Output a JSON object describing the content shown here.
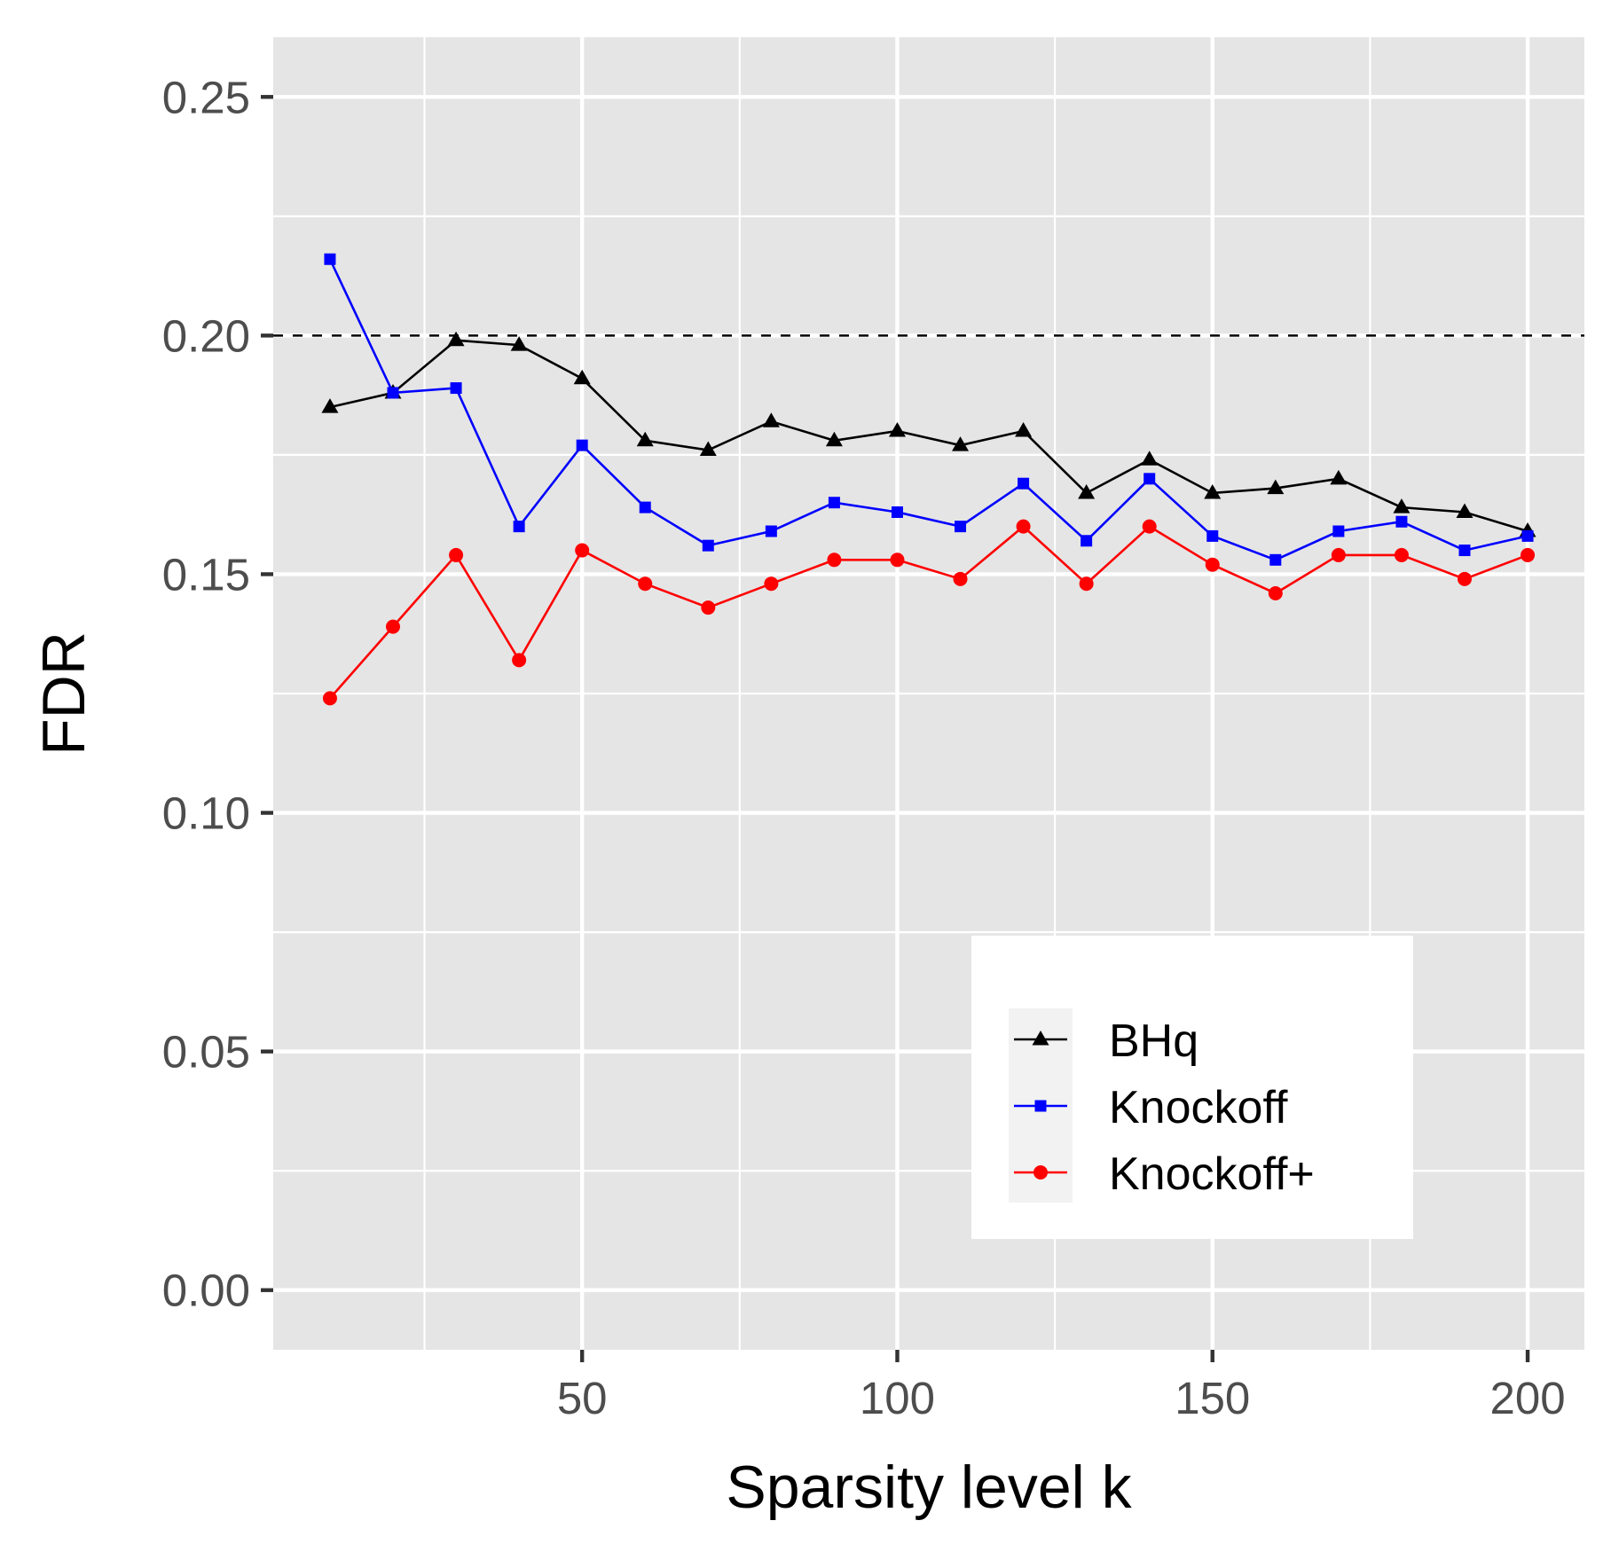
{
  "chart_data": {
    "type": "line",
    "title": "",
    "xlabel": "Sparsity level k",
    "ylabel": "FDR",
    "xlim": [
      1,
      209
    ],
    "ylim": [
      -0.0125,
      0.2625
    ],
    "x_ticks": [
      50,
      100,
      150,
      200
    ],
    "x_tick_labels": [
      "50",
      "100",
      "150",
      "200"
    ],
    "x_minor_ticks": [
      25,
      75,
      125,
      175
    ],
    "y_ticks": [
      0.0,
      0.05,
      0.1,
      0.15,
      0.2,
      0.25
    ],
    "y_tick_labels": [
      "0.00",
      "0.05",
      "0.10",
      "0.15",
      "0.20",
      "0.25"
    ],
    "y_minor_ticks": [
      0.025,
      0.075,
      0.125,
      0.175,
      0.225
    ],
    "grid": true,
    "reference_line": {
      "y": 0.2,
      "style": "dashed",
      "color": "#000000"
    },
    "legend_position": "bottom-right",
    "x": [
      10,
      20,
      30,
      40,
      50,
      60,
      70,
      80,
      90,
      100,
      110,
      120,
      130,
      140,
      150,
      160,
      170,
      180,
      190,
      200
    ],
    "series": [
      {
        "name": "BHq",
        "color": "#000000",
        "marker": "triangle",
        "values": [
          0.185,
          0.188,
          0.199,
          0.198,
          0.191,
          0.178,
          0.176,
          0.182,
          0.178,
          0.18,
          0.177,
          0.18,
          0.167,
          0.174,
          0.167,
          0.168,
          0.17,
          0.164,
          0.163,
          0.159
        ]
      },
      {
        "name": "Knockoff",
        "color": "#0000ff",
        "marker": "square",
        "values": [
          0.216,
          0.188,
          0.189,
          0.16,
          0.177,
          0.164,
          0.156,
          0.159,
          0.165,
          0.163,
          0.16,
          0.169,
          0.157,
          0.17,
          0.158,
          0.153,
          0.159,
          0.161,
          0.155,
          0.158
        ]
      },
      {
        "name": "Knockoff+",
        "color": "#ff0000",
        "marker": "circle",
        "values": [
          0.124,
          0.139,
          0.154,
          0.132,
          0.155,
          0.148,
          0.143,
          0.148,
          0.153,
          0.153,
          0.149,
          0.16,
          0.148,
          0.16,
          0.152,
          0.146,
          0.154,
          0.154,
          0.149,
          0.154
        ]
      }
    ]
  }
}
